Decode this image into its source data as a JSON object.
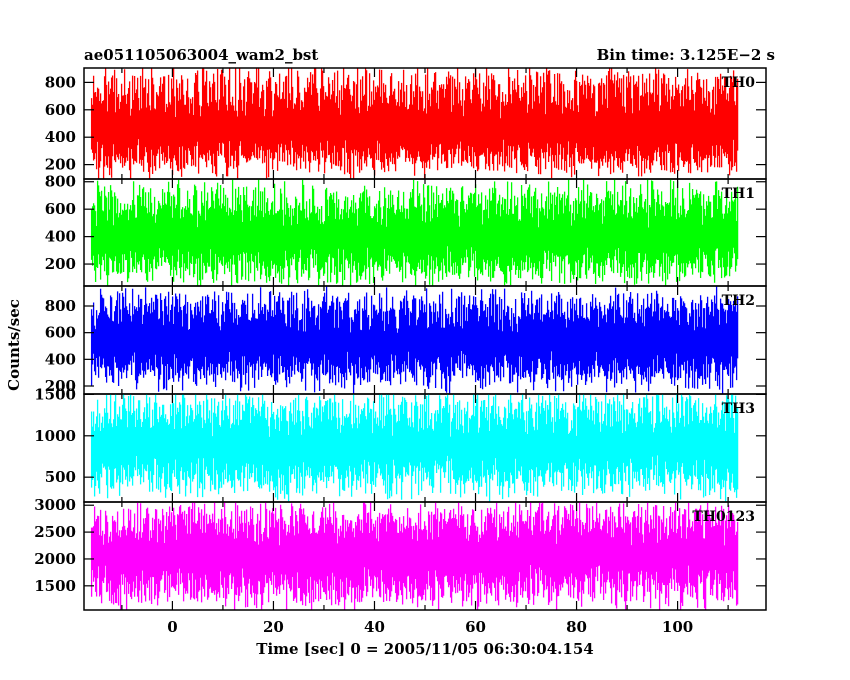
{
  "chart_data": {
    "type": "line",
    "title": "ae051105063004_wam2_bst",
    "subtitle": "Bin time: 3.125E−2 s",
    "xlabel": "Time [sec] 0 = 2005/11/05 06:30:04.154",
    "ylabel": "Counts/sec",
    "xlim": [
      -17.5,
      117.5
    ],
    "x_ticks": [
      0,
      20,
      40,
      60,
      80,
      100
    ],
    "x_tick_labels": [
      "0",
      "20",
      "40",
      "60",
      "80",
      "100"
    ],
    "data_x_range": [
      -16,
      112
    ],
    "bin_time_s": 0.03125,
    "grid": false,
    "panels": [
      {
        "name": "TH0",
        "color": "#ff0000",
        "ylim": [
          95,
          905
        ],
        "y_ticks": [
          200,
          400,
          600,
          800
        ],
        "y_tick_labels": [
          "200",
          "400",
          "600",
          "800"
        ],
        "typical_range": [
          150,
          900
        ],
        "mean": 420
      },
      {
        "name": "TH1",
        "color": "#00ff00",
        "ylim": [
          40,
          820
        ],
        "y_ticks": [
          200,
          400,
          600,
          800
        ],
        "y_tick_labels": [
          "200",
          "400",
          "600",
          "800"
        ],
        "typical_range": [
          80,
          780
        ],
        "mean": 380
      },
      {
        "name": "TH2",
        "color": "#0000ff",
        "ylim": [
          140,
          950
        ],
        "y_ticks": [
          200,
          400,
          600,
          800
        ],
        "y_tick_labels": [
          "200",
          "400",
          "600",
          "800"
        ],
        "typical_range": [
          200,
          900
        ],
        "mean": 520
      },
      {
        "name": "TH3",
        "color": "#00ffff",
        "ylim": [
          200,
          1505
        ],
        "y_ticks": [
          500,
          1000,
          1500
        ],
        "y_tick_labels": [
          "500",
          "1000",
          "1500"
        ],
        "typical_range": [
          300,
          1500
        ],
        "mean": 850
      },
      {
        "name": "TH0123",
        "color": "#ff00ff",
        "ylim": [
          1050,
          3060
        ],
        "y_ticks": [
          1500,
          2000,
          2500,
          3000
        ],
        "y_tick_labels": [
          "1500",
          "2000",
          "2500",
          "3000"
        ],
        "typical_range": [
          1150,
          3000
        ],
        "mean": 2050
      }
    ]
  }
}
